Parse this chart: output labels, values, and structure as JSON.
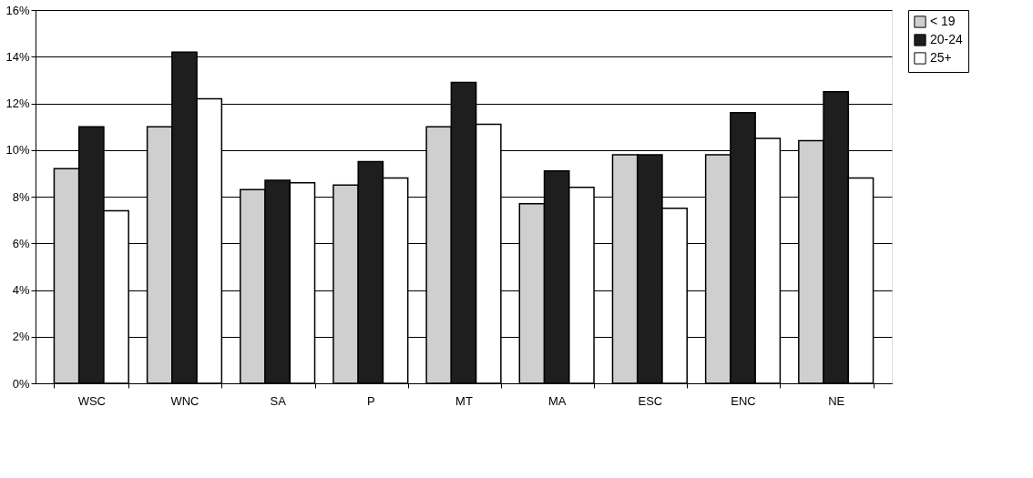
{
  "chart_data": {
    "type": "bar",
    "categories": [
      "WSC",
      "WNC",
      "SA",
      "P",
      "MT",
      "MA",
      "ESC",
      "ENC",
      "NE"
    ],
    "series": [
      {
        "name": "< 19",
        "color": "#cfcfcf",
        "values": [
          9.2,
          11.0,
          8.3,
          8.5,
          11.0,
          7.7,
          9.8,
          9.8,
          10.4
        ]
      },
      {
        "name": "20-24",
        "color": "#1e1e1e",
        "values": [
          11.0,
          14.2,
          8.7,
          9.5,
          12.9,
          9.1,
          9.8,
          11.6,
          12.5
        ]
      },
      {
        "name": "25+",
        "color": "#ffffff",
        "values": [
          7.4,
          12.2,
          8.6,
          8.8,
          11.1,
          8.4,
          7.5,
          10.5,
          8.8
        ]
      }
    ],
    "ylim": [
      0,
      16
    ],
    "yticks": [
      {
        "value": 0,
        "label": "0%"
      },
      {
        "value": 2,
        "label": "2%"
      },
      {
        "value": 4,
        "label": "4%"
      },
      {
        "value": 6,
        "label": "6%"
      },
      {
        "value": 8,
        "label": "8%"
      },
      {
        "value": 10,
        "label": "10%"
      },
      {
        "value": 12,
        "label": "12%"
      },
      {
        "value": 14,
        "label": "14%"
      },
      {
        "value": 16,
        "label": "16%"
      }
    ],
    "grid": "y",
    "legend": "right"
  }
}
